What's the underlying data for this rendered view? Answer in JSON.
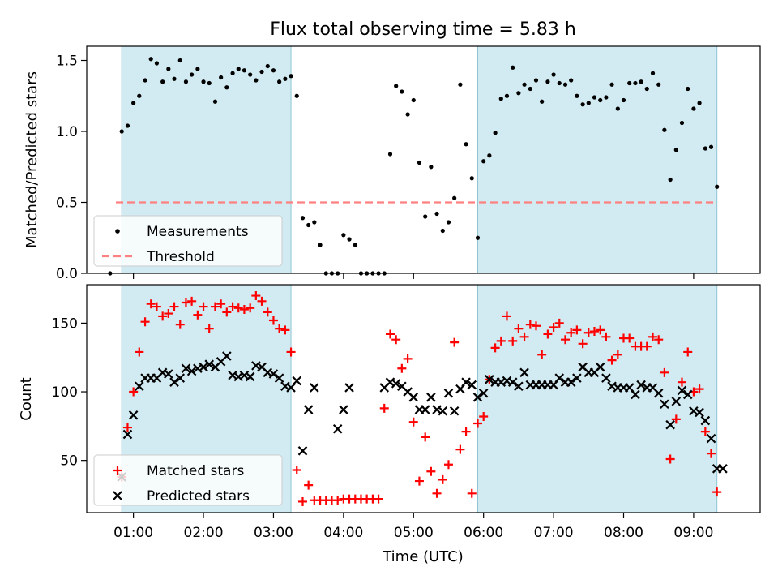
{
  "chart_data": [
    {
      "type": "scatter",
      "title": "Flux total observing time = 5.83 h",
      "ylabel": "Matched/Predicted stars",
      "xlabel": "",
      "xlim": [
        0.333,
        9.95
      ],
      "ylim": [
        0,
        1.6
      ],
      "yticks": [
        0.0,
        0.5,
        1.0,
        1.5
      ],
      "ytick_labels": [
        "0.0",
        "0.5",
        "1.0",
        "1.5"
      ],
      "xticks_minor_marks": [
        1,
        4,
        5,
        9
      ],
      "shaded_intervals": [
        [
          0.833,
          3.25
        ],
        [
          5.917,
          9.333
        ]
      ],
      "shade_color": "#add8e6",
      "legend": {
        "position": "lower-left",
        "entries": [
          "Measurements",
          "Threshold"
        ]
      },
      "series": [
        {
          "name": "Measurements",
          "kind": "scatter",
          "color": "#000000",
          "x": [
            0.667,
            0.833,
            0.917,
            1.0,
            1.083,
            1.167,
            1.25,
            1.333,
            1.417,
            1.5,
            1.583,
            1.667,
            1.75,
            1.833,
            1.917,
            2.0,
            2.083,
            2.167,
            2.25,
            2.333,
            2.417,
            2.5,
            2.583,
            2.667,
            2.75,
            2.833,
            2.917,
            3.0,
            3.083,
            3.167,
            3.25,
            3.333,
            3.417,
            3.5,
            3.583,
            3.667,
            3.75,
            3.833,
            3.917,
            4.0,
            4.083,
            4.167,
            4.25,
            4.333,
            4.417,
            4.5,
            4.583,
            4.667,
            4.75,
            4.833,
            4.917,
            5.0,
            5.083,
            5.167,
            5.25,
            5.333,
            5.417,
            5.5,
            5.583,
            5.667,
            5.75,
            5.833,
            5.917,
            6.0,
            6.083,
            6.167,
            6.25,
            6.333,
            6.417,
            6.5,
            6.583,
            6.667,
            6.75,
            6.833,
            6.917,
            7.0,
            7.083,
            7.167,
            7.25,
            7.333,
            7.417,
            7.5,
            7.583,
            7.667,
            7.75,
            7.833,
            7.917,
            8.0,
            8.083,
            8.167,
            8.25,
            8.333,
            8.417,
            8.5,
            8.583,
            8.667,
            8.75,
            8.833,
            8.917,
            9.0,
            9.083,
            9.167,
            9.25,
            9.333
          ],
          "y": [
            0.0,
            1.0,
            1.04,
            1.2,
            1.25,
            1.36,
            1.51,
            1.48,
            1.35,
            1.44,
            1.37,
            1.5,
            1.35,
            1.4,
            1.44,
            1.35,
            1.34,
            1.21,
            1.38,
            1.31,
            1.41,
            1.44,
            1.43,
            1.4,
            1.36,
            1.42,
            1.46,
            1.43,
            1.35,
            1.37,
            1.39,
            1.25,
            0.39,
            0.34,
            0.36,
            0.2,
            0.0,
            0.0,
            0.0,
            0.27,
            0.24,
            0.2,
            0.0,
            0.0,
            0.0,
            0.0,
            0.0,
            0.84,
            1.32,
            1.28,
            1.12,
            1.22,
            0.78,
            0.4,
            0.75,
            0.42,
            0.3,
            0.36,
            0.53,
            1.33,
            0.91,
            0.67,
            0.25,
            0.79,
            0.83,
            0.99,
            1.23,
            1.25,
            1.45,
            1.27,
            1.33,
            1.3,
            1.36,
            1.21,
            1.35,
            1.4,
            1.34,
            1.33,
            1.36,
            1.25,
            1.19,
            1.2,
            1.24,
            1.22,
            1.24,
            1.33,
            1.16,
            1.22,
            1.34,
            1.34,
            1.35,
            1.3,
            1.41,
            1.33,
            1.01,
            0.66,
            0.87,
            1.06,
            1.3,
            1.16,
            1.2,
            0.88,
            0.89,
            0.61
          ]
        },
        {
          "name": "Threshold",
          "kind": "line",
          "style": "dashed",
          "color": "#ff8080",
          "x": [
            0.75,
            9.333
          ],
          "y": [
            0.5,
            0.5
          ]
        }
      ]
    },
    {
      "type": "scatter",
      "title": "",
      "ylabel": "Count",
      "xlabel": "Time (UTC)",
      "xlim": [
        0.333,
        9.95
      ],
      "ylim": [
        12,
        178
      ],
      "yticks": [
        50,
        100,
        150
      ],
      "ytick_labels": [
        "50",
        "100",
        "150"
      ],
      "xticks": [
        1,
        2,
        3,
        4,
        5,
        6,
        7,
        8,
        9
      ],
      "xtick_labels": [
        "01:00",
        "02:00",
        "03:00",
        "04:00",
        "05:00",
        "06:00",
        "07:00",
        "08:00",
        "09:00"
      ],
      "shaded_intervals": [
        [
          0.833,
          3.25
        ],
        [
          5.917,
          9.333
        ]
      ],
      "shade_color": "#add8e6",
      "legend": {
        "position": "lower-left",
        "entries": [
          "Matched stars",
          "Predicted stars"
        ]
      },
      "series": [
        {
          "name": "Matched stars",
          "marker": "+",
          "color": "#ff0000",
          "x": [
            0.833,
            0.917,
            1.0,
            1.083,
            1.167,
            1.25,
            1.333,
            1.417,
            1.5,
            1.583,
            1.667,
            1.75,
            1.833,
            1.917,
            2.0,
            2.083,
            2.167,
            2.25,
            2.333,
            2.417,
            2.5,
            2.583,
            2.667,
            2.75,
            2.833,
            2.917,
            3.0,
            3.083,
            3.167,
            3.25,
            3.333,
            3.417,
            3.5,
            3.583,
            3.667,
            3.75,
            3.833,
            3.917,
            4.0,
            4.083,
            4.167,
            4.25,
            4.333,
            4.417,
            4.5,
            4.583,
            4.667,
            4.75,
            4.833,
            4.917,
            5.0,
            5.083,
            5.167,
            5.25,
            5.333,
            5.417,
            5.5,
            5.583,
            5.667,
            5.75,
            5.833,
            5.917,
            6.0,
            6.083,
            6.167,
            6.25,
            6.333,
            6.417,
            6.5,
            6.583,
            6.667,
            6.75,
            6.833,
            6.917,
            7.0,
            7.083,
            7.167,
            7.25,
            7.333,
            7.417,
            7.5,
            7.583,
            7.667,
            7.75,
            7.833,
            7.917,
            8.0,
            8.083,
            8.167,
            8.25,
            8.333,
            8.417,
            8.5,
            8.583,
            8.667,
            8.75,
            8.833,
            8.917,
            9.0,
            9.083,
            9.167,
            9.25,
            9.333
          ],
          "y": [
            38,
            74,
            100,
            129,
            151,
            164,
            162,
            155,
            157,
            162,
            149,
            165,
            166,
            156,
            162,
            146,
            162,
            164,
            158,
            162,
            161,
            160,
            161,
            170,
            166,
            158,
            152,
            146,
            145,
            129,
            43,
            20,
            32,
            21,
            21,
            21,
            21,
            21,
            22,
            22,
            22,
            22,
            22,
            22,
            22,
            88,
            142,
            138,
            117,
            124,
            78,
            35,
            67,
            42,
            26,
            36,
            47,
            136,
            58,
            71,
            26,
            77,
            82,
            109,
            132,
            137,
            155,
            137,
            146,
            140,
            149,
            148,
            127,
            142,
            147,
            150,
            138,
            143,
            145,
            135,
            143,
            144,
            145,
            140,
            123,
            127,
            139,
            139,
            133,
            133,
            133,
            140,
            138,
            114,
            51,
            80,
            107,
            129,
            100,
            102,
            71,
            55,
            27
          ]
        },
        {
          "name": "Predicted stars",
          "marker": "x",
          "color": "#000000",
          "x": [
            0.833,
            0.917,
            1.0,
            1.083,
            1.167,
            1.25,
            1.333,
            1.417,
            1.5,
            1.583,
            1.667,
            1.75,
            1.833,
            1.917,
            2.0,
            2.083,
            2.167,
            2.25,
            2.333,
            2.417,
            2.5,
            2.583,
            2.667,
            2.75,
            2.833,
            2.917,
            3.0,
            3.083,
            3.167,
            3.25,
            3.333,
            3.417,
            3.5,
            3.583,
            3.917,
            4.0,
            4.083,
            4.583,
            4.667,
            4.75,
            4.833,
            4.917,
            5.0,
            5.083,
            5.167,
            5.25,
            5.333,
            5.417,
            5.5,
            5.583,
            5.667,
            5.75,
            5.833,
            5.917,
            6.0,
            6.083,
            6.167,
            6.25,
            6.333,
            6.417,
            6.5,
            6.583,
            6.667,
            6.75,
            6.833,
            6.917,
            7.0,
            7.083,
            7.167,
            7.25,
            7.333,
            7.417,
            7.5,
            7.583,
            7.667,
            7.75,
            7.833,
            7.917,
            8.0,
            8.083,
            8.167,
            8.25,
            8.333,
            8.417,
            8.5,
            8.583,
            8.667,
            8.75,
            8.833,
            8.917,
            9.0,
            9.083,
            9.167,
            9.25,
            9.333,
            9.417
          ],
          "y": [
            38,
            69,
            83,
            104,
            110,
            110,
            110,
            114,
            113,
            107,
            110,
            117,
            115,
            117,
            118,
            120,
            118,
            122,
            126,
            112,
            111,
            112,
            111,
            119,
            118,
            114,
            113,
            110,
            104,
            103,
            108,
            57,
            87,
            103,
            73,
            87,
            103,
            103,
            107,
            106,
            104,
            100,
            96,
            87,
            87,
            96,
            87,
            86,
            99,
            86,
            102,
            107,
            105,
            96,
            99,
            109,
            107,
            107,
            108,
            107,
            104,
            114,
            105,
            105,
            105,
            105,
            105,
            110,
            107,
            107,
            110,
            118,
            114,
            114,
            118,
            110,
            104,
            103,
            103,
            103,
            98,
            105,
            103,
            103,
            99,
            91,
            76,
            93,
            101,
            98,
            86,
            85,
            79,
            66,
            44,
            44
          ]
        }
      ]
    }
  ]
}
